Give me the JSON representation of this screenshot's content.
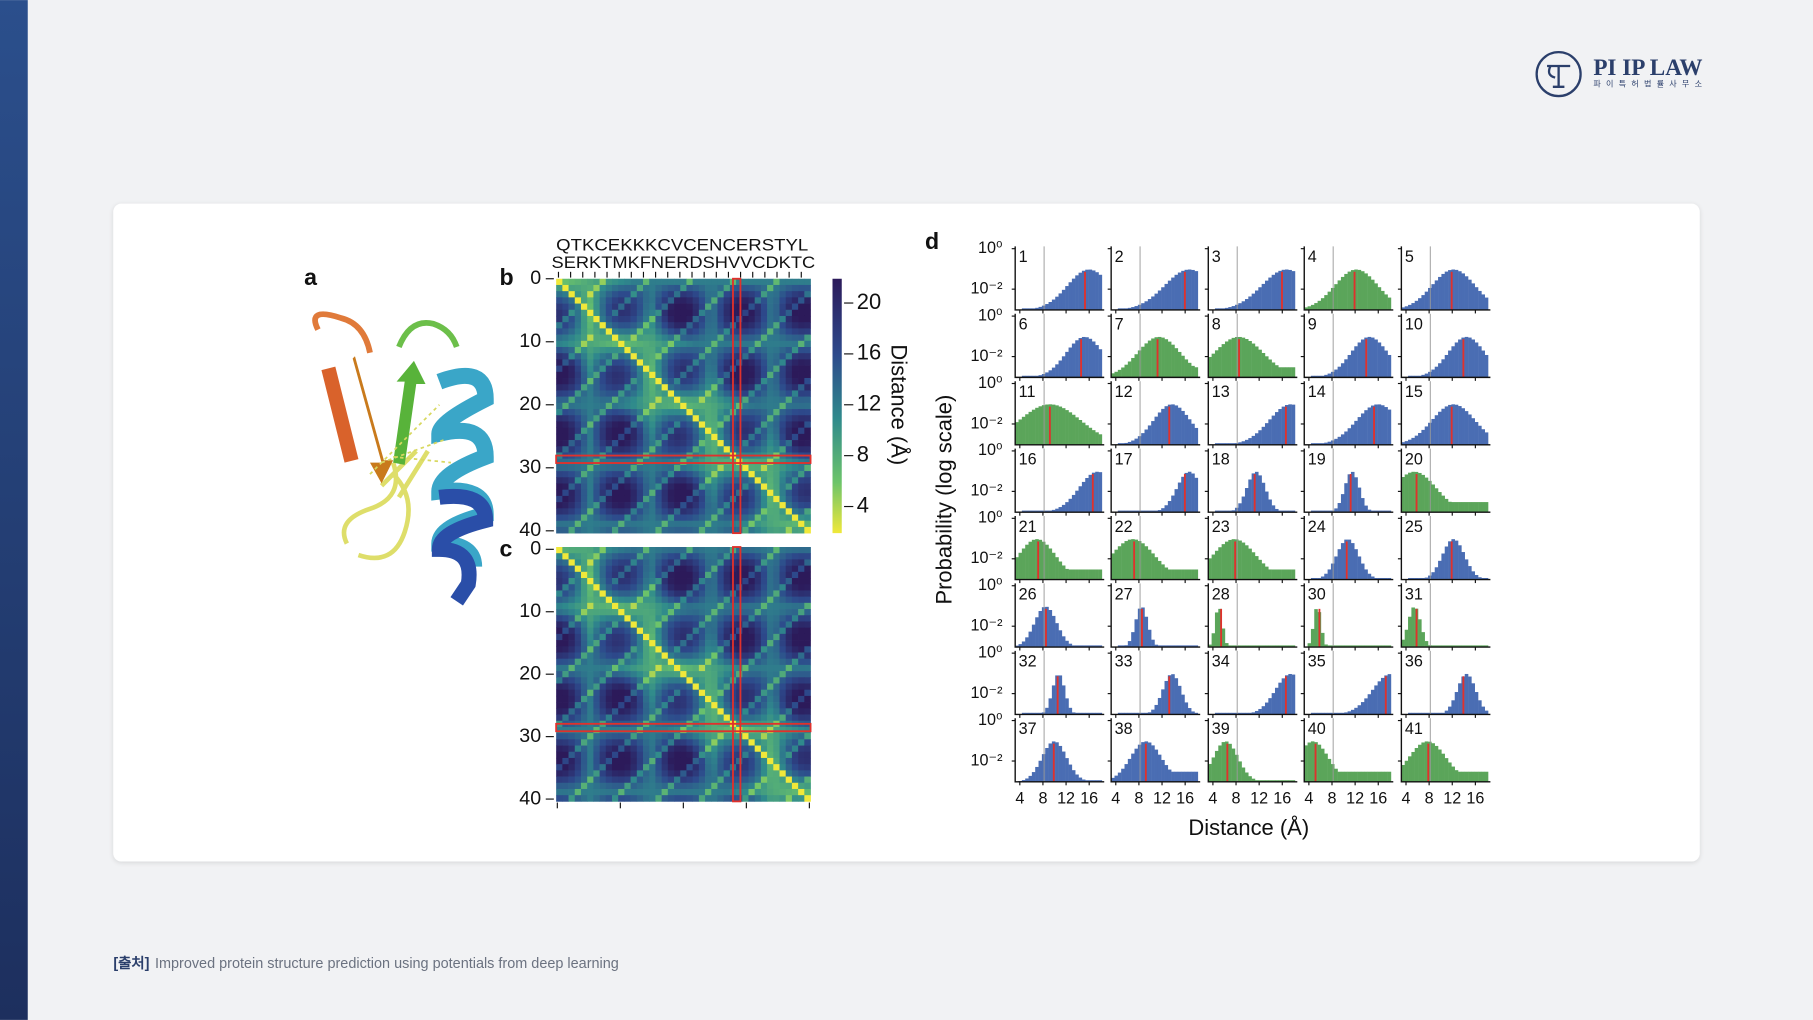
{
  "logo": {
    "name": "PI IP LAW",
    "subtitle": "파이특허법률사무소"
  },
  "figure": {
    "panel_labels": [
      "a",
      "b",
      "c",
      "d"
    ],
    "sequence": [
      "QTKCEKKKCVCENCERSTYL",
      "SERKTMKFNERDSHVVCDKTC"
    ],
    "map_ticks": [
      "0",
      "10",
      "20",
      "30",
      "40"
    ],
    "colorbar_ticks": [
      "20",
      "16",
      "12",
      "8",
      "4"
    ],
    "colorbar_label": "Distance (Å)",
    "hist_y_ticks": [
      "10⁰",
      "10⁻²"
    ],
    "hist_x_ticks": [
      "4",
      "8",
      "12",
      "16"
    ],
    "hist_x_label": "Distance (Å)",
    "hist_y_label": "Probability (log scale)",
    "histograms": [
      {
        "label": "1",
        "color": "#4a6db3"
      },
      {
        "label": "2",
        "color": "#4a6db3"
      },
      {
        "label": "3",
        "color": "#4a6db3"
      },
      {
        "label": "4",
        "color": "#5ba55a"
      },
      {
        "label": "5",
        "color": "#4a6db3"
      },
      {
        "label": "6",
        "color": "#4a6db3"
      },
      {
        "label": "7",
        "color": "#5ba55a"
      },
      {
        "label": "8",
        "color": "#5ba55a"
      },
      {
        "label": "9",
        "color": "#4a6db3"
      },
      {
        "label": "10",
        "color": "#4a6db3"
      },
      {
        "label": "11",
        "color": "#5ba55a"
      },
      {
        "label": "12",
        "color": "#4a6db3"
      },
      {
        "label": "13",
        "color": "#4a6db3"
      },
      {
        "label": "14",
        "color": "#4a6db3"
      },
      {
        "label": "15",
        "color": "#4a6db3"
      },
      {
        "label": "16",
        "color": "#4a6db3"
      },
      {
        "label": "17",
        "color": "#4a6db3"
      },
      {
        "label": "18",
        "color": "#4a6db3"
      },
      {
        "label": "19",
        "color": "#4a6db3"
      },
      {
        "label": "20",
        "color": "#5ba55a"
      },
      {
        "label": "21",
        "color": "#5ba55a"
      },
      {
        "label": "22",
        "color": "#5ba55a"
      },
      {
        "label": "23",
        "color": "#5ba55a"
      },
      {
        "label": "24",
        "color": "#4a6db3"
      },
      {
        "label": "25",
        "color": "#4a6db3"
      },
      {
        "label": "26",
        "color": "#4a6db3"
      },
      {
        "label": "27",
        "color": "#4a6db3"
      },
      {
        "label": "28",
        "color": "#5ba55a"
      },
      {
        "label": "30",
        "color": "#5ba55a"
      },
      {
        "label": "31",
        "color": "#5ba55a"
      },
      {
        "label": "32",
        "color": "#4a6db3"
      },
      {
        "label": "33",
        "color": "#4a6db3"
      },
      {
        "label": "34",
        "color": "#4a6db3"
      },
      {
        "label": "35",
        "color": "#4a6db3"
      },
      {
        "label": "36",
        "color": "#4a6db3"
      },
      {
        "label": "37",
        "color": "#4a6db3"
      },
      {
        "label": "38",
        "color": "#4a6db3"
      },
      {
        "label": "39",
        "color": "#5ba55a"
      },
      {
        "label": "40",
        "color": "#5ba55a"
      },
      {
        "label": "41",
        "color": "#5ba55a"
      }
    ]
  },
  "caption": {
    "tag": "[출처]",
    "text": "Improved protein structure prediction using potentials from deep learning"
  }
}
